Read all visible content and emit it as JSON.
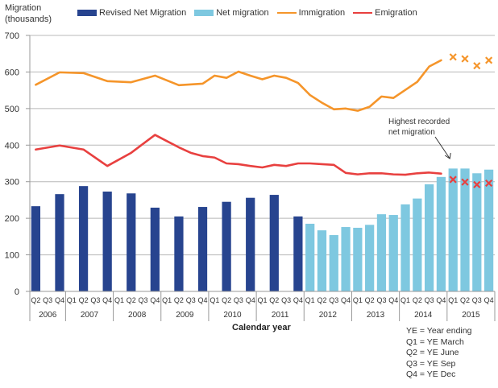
{
  "chart_data": {
    "type": "bar",
    "title": "",
    "ylabel": "Migration (thousands)",
    "xlabel": "Calendar year",
    "ylim": [
      0,
      700
    ],
    "yticks": [
      0,
      100,
      200,
      300,
      400,
      500,
      600,
      700
    ],
    "grid": true,
    "legend_position": "top",
    "categories": [
      "2006 Q2",
      "2006 Q3",
      "2006 Q4",
      "2007 Q1",
      "2007 Q2",
      "2007 Q3",
      "2007 Q4",
      "2008 Q1",
      "2008 Q2",
      "2008 Q3",
      "2008 Q4",
      "2009 Q1",
      "2009 Q2",
      "2009 Q3",
      "2009 Q4",
      "2010 Q1",
      "2010 Q2",
      "2010 Q3",
      "2010 Q4",
      "2011 Q1",
      "2011 Q2",
      "2011 Q3",
      "2011 Q4",
      "2012 Q1",
      "2012 Q2",
      "2012 Q3",
      "2012 Q4",
      "2013 Q1",
      "2013 Q2",
      "2013 Q3",
      "2013 Q4",
      "2014 Q1",
      "2014 Q2",
      "2014 Q3",
      "2014 Q4",
      "2015 Q1",
      "2015 Q2",
      "2015 Q3",
      "2015 Q4"
    ],
    "quarter_labels": [
      "Q2",
      "Q3",
      "Q4",
      "Q1",
      "Q2",
      "Q3",
      "Q4",
      "Q1",
      "Q2",
      "Q3",
      "Q4",
      "Q1",
      "Q2",
      "Q3",
      "Q4",
      "Q1",
      "Q2",
      "Q3",
      "Q4",
      "Q1",
      "Q2",
      "Q3",
      "Q4",
      "Q1",
      "Q2",
      "Q3",
      "Q4",
      "Q1",
      "Q2",
      "Q3",
      "Q4",
      "Q1",
      "Q2",
      "Q3",
      "Q4",
      "Q1",
      "Q2",
      "Q3",
      "Q4"
    ],
    "year_groups": [
      {
        "label": "2006",
        "start": 0,
        "count": 3
      },
      {
        "label": "2007",
        "start": 3,
        "count": 4
      },
      {
        "label": "2008",
        "start": 7,
        "count": 4
      },
      {
        "label": "2009",
        "start": 11,
        "count": 4
      },
      {
        "label": "2010",
        "start": 15,
        "count": 4
      },
      {
        "label": "2011",
        "start": 19,
        "count": 4
      },
      {
        "label": "2012",
        "start": 23,
        "count": 4
      },
      {
        "label": "2013",
        "start": 27,
        "count": 4
      },
      {
        "label": "2014",
        "start": 31,
        "count": 4
      },
      {
        "label": "2015",
        "start": 35,
        "count": 4
      }
    ],
    "series": [
      {
        "name": "Revised Net Migration",
        "kind": "bar",
        "color": "#27448f",
        "values": [
          233,
          null,
          266,
          null,
          288,
          null,
          273,
          null,
          268,
          null,
          229,
          null,
          205,
          null,
          231,
          null,
          245,
          null,
          256,
          null,
          264,
          null,
          205,
          null,
          null,
          null,
          null,
          null,
          null,
          null,
          null,
          null,
          null,
          null,
          null,
          null,
          null,
          null,
          null
        ]
      },
      {
        "name": "Net migration",
        "kind": "bar",
        "color": "#7ec8e0",
        "values": [
          null,
          null,
          null,
          null,
          null,
          null,
          null,
          null,
          null,
          null,
          null,
          null,
          null,
          null,
          null,
          null,
          null,
          null,
          null,
          null,
          null,
          null,
          null,
          185,
          167,
          154,
          176,
          174,
          182,
          211,
          209,
          238,
          254,
          293,
          313,
          336,
          336,
          323,
          333
        ]
      },
      {
        "name": "Immigration",
        "kind": "line",
        "color": "#f5952a",
        "values": [
          565,
          null,
          599,
          null,
          597,
          null,
          575,
          null,
          572,
          null,
          590,
          null,
          564,
          null,
          568,
          590,
          584,
          601,
          590,
          580,
          590,
          584,
          570,
          537,
          516,
          498,
          500,
          494,
          505,
          533,
          529,
          551,
          573,
          615,
          632,
          null,
          null,
          null,
          null
        ],
        "projected_marker": "x",
        "projected_values": [
          null,
          null,
          null,
          null,
          null,
          null,
          null,
          null,
          null,
          null,
          null,
          null,
          null,
          null,
          null,
          null,
          null,
          null,
          null,
          null,
          null,
          null,
          null,
          null,
          null,
          null,
          null,
          null,
          null,
          null,
          null,
          null,
          null,
          null,
          null,
          641,
          636,
          617,
          632
        ]
      },
      {
        "name": "Emigration",
        "kind": "line",
        "color": "#e8403f",
        "values": [
          388,
          null,
          399,
          null,
          388,
          null,
          343,
          null,
          379,
          null,
          428,
          411,
          394,
          379,
          370,
          366,
          350,
          348,
          343,
          339,
          346,
          343,
          350,
          350,
          348,
          346,
          324,
          320,
          323,
          323,
          320,
          319,
          323,
          325,
          322,
          null,
          null,
          null,
          null
        ],
        "projected_marker": "x",
        "projected_values": [
          null,
          null,
          null,
          null,
          null,
          null,
          null,
          null,
          null,
          null,
          null,
          null,
          null,
          null,
          null,
          null,
          null,
          null,
          null,
          null,
          null,
          null,
          null,
          null,
          null,
          null,
          null,
          null,
          null,
          null,
          null,
          null,
          null,
          null,
          null,
          306,
          299,
          292,
          296
        ]
      }
    ],
    "annotations": [
      {
        "text_line1": "Highest recorded",
        "text_line2": "net migration",
        "target_category": "2015 Q1"
      }
    ]
  },
  "page": {
    "ylabel_line1": "Migration",
    "ylabel_line2": "(thousands)",
    "legend": [
      {
        "label": "Revised Net Migration",
        "color": "#27448f",
        "kind": "bar"
      },
      {
        "label": "Net migration",
        "color": "#7ec8e0",
        "kind": "bar"
      },
      {
        "label": "Immigration",
        "color": "#f5952a",
        "kind": "line"
      },
      {
        "label": "Emigration",
        "color": "#e8403f",
        "kind": "line"
      }
    ],
    "xtitle": "Calendar year",
    "notes": [
      "YE = Year ending",
      "Q1 = YE March",
      "Q2 = YE June",
      "Q3 = YE Sep",
      "Q4 = YE Dec"
    ],
    "annotation_line1": "Highest recorded",
    "annotation_line2": "net migration"
  }
}
